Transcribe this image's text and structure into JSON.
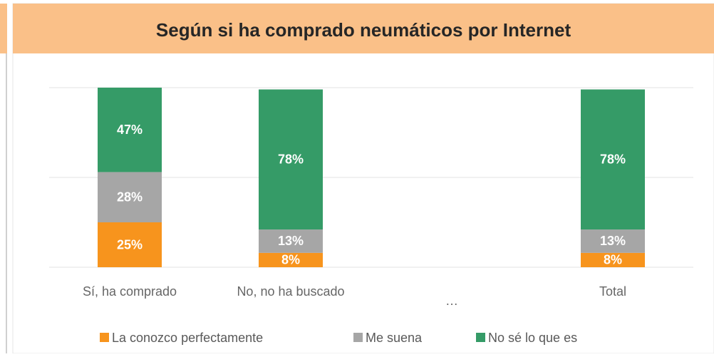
{
  "chart_data": {
    "type": "stacked_bar",
    "title": "Según si ha comprado neumáticos por Internet",
    "categories": [
      "Sí, ha comprado",
      "No, no ha buscado",
      "…",
      "Total"
    ],
    "series": [
      {
        "name": "La conozco perfectamente",
        "color": "#f7941d",
        "values": [
          25,
          8,
          null,
          8
        ],
        "value_labels": [
          "25%",
          "8%",
          null,
          "8%"
        ]
      },
      {
        "name": "Me suena",
        "color": "#a6a6a6",
        "values": [
          28,
          13,
          null,
          13
        ],
        "value_labels": [
          "28%",
          "13%",
          null,
          "13%"
        ]
      },
      {
        "name": "No sé lo que es",
        "color": "#359b67",
        "values": [
          47,
          78,
          null,
          78
        ],
        "value_labels": [
          "47%",
          "78%",
          null,
          "78%"
        ]
      }
    ],
    "ylim": [
      0,
      100
    ],
    "yticks": [
      0,
      50,
      100
    ],
    "tick_labels": false,
    "grid": true,
    "legend": "bottom"
  }
}
